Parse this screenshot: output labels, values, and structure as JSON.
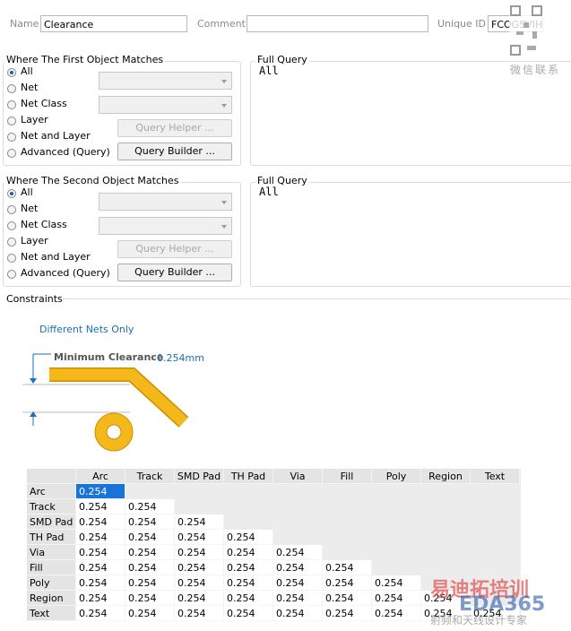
{
  "header": {
    "name_label": "Name",
    "name_value": "Clearance",
    "comment_label": "Comment",
    "unique_id_label": "Unique ID",
    "unique_id_value": "FCOGSVIH"
  },
  "watermarks": {
    "qr_caption": "微信联系",
    "brand": "易迪拓培训",
    "site": "EDA365",
    "slogan": "射频和天线设计专家"
  },
  "first": {
    "title": "Where The First Object Matches",
    "options": [
      "All",
      "Net",
      "Net Class",
      "Layer",
      "Net and Layer",
      "Advanced (Query)"
    ],
    "query_helper": "Query Helper ...",
    "query_builder": "Query Builder ...",
    "full_query_label": "Full Query",
    "full_query": "All"
  },
  "second": {
    "title": "Where The Second Object Matches",
    "options": [
      "All",
      "Net",
      "Net Class",
      "Layer",
      "Net and Layer",
      "Advanced (Query)"
    ],
    "query_helper": "Query Helper ...",
    "query_builder": "Query Builder ...",
    "full_query_label": "Full Query",
    "full_query": "All"
  },
  "constraints": {
    "title": "Constraints",
    "net_scope": "Different Nets Only",
    "min_clearance_label": "Minimum Clearance",
    "min_clearance_value": "0.254mm"
  },
  "table": {
    "columns": [
      "Arc",
      "Track",
      "SMD Pad",
      "TH Pad",
      "Via",
      "Fill",
      "Poly",
      "Region",
      "Text"
    ],
    "rows": [
      {
        "label": "Arc",
        "values": [
          "0.254"
        ]
      },
      {
        "label": "Track",
        "values": [
          "0.254",
          "0.254"
        ]
      },
      {
        "label": "SMD Pad",
        "values": [
          "0.254",
          "0.254",
          "0.254"
        ]
      },
      {
        "label": "TH Pad",
        "values": [
          "0.254",
          "0.254",
          "0.254",
          "0.254"
        ]
      },
      {
        "label": "Via",
        "values": [
          "0.254",
          "0.254",
          "0.254",
          "0.254",
          "0.254"
        ]
      },
      {
        "label": "Fill",
        "values": [
          "0.254",
          "0.254",
          "0.254",
          "0.254",
          "0.254",
          "0.254"
        ]
      },
      {
        "label": "Poly",
        "values": [
          "0.254",
          "0.254",
          "0.254",
          "0.254",
          "0.254",
          "0.254",
          "0.254"
        ]
      },
      {
        "label": "Region",
        "values": [
          "0.254",
          "0.254",
          "0.254",
          "0.254",
          "0.254",
          "0.254",
          "0.254",
          "0.254"
        ]
      },
      {
        "label": "Text",
        "values": [
          "0.254",
          "0.254",
          "0.254",
          "0.254",
          "0.254",
          "0.254",
          "0.254",
          "0.254",
          "0.254"
        ]
      }
    ]
  }
}
